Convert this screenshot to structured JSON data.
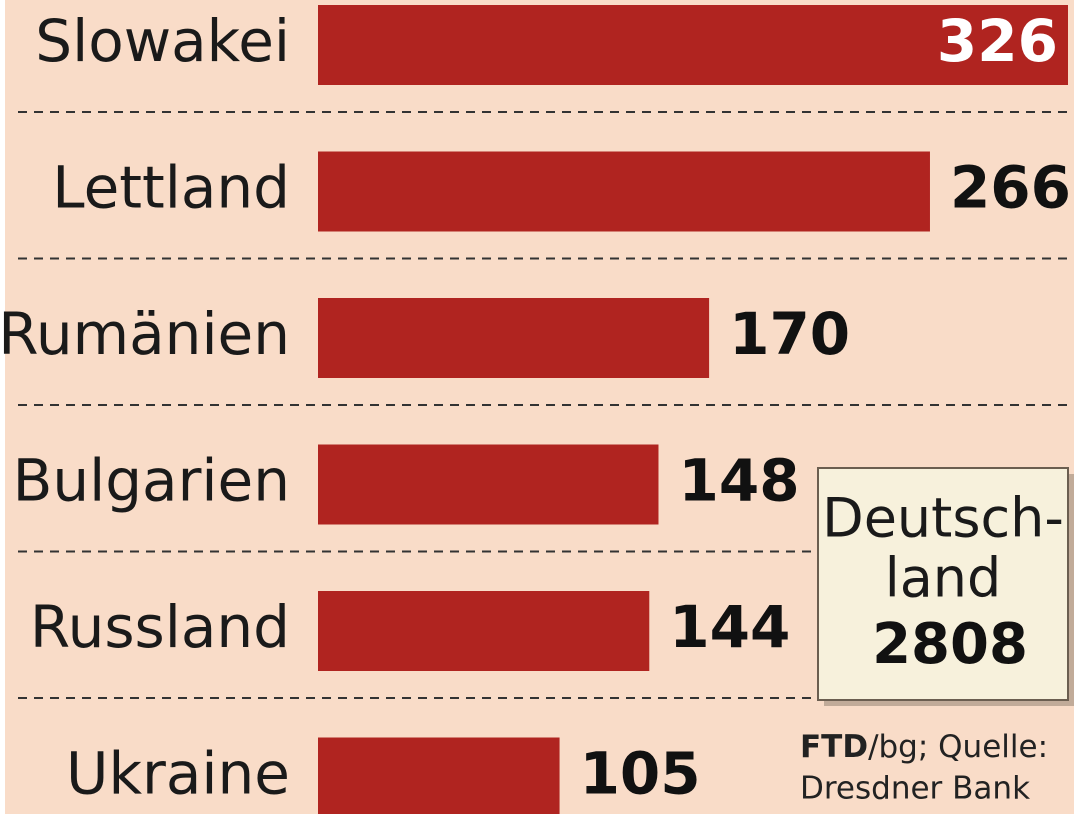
{
  "chart_data": {
    "type": "hbar",
    "categories": [
      "Slowakei",
      "Lettland",
      "Rumänien",
      "Bulgarien",
      "Russland",
      "Ukraine"
    ],
    "values": [
      326,
      266,
      170,
      148,
      144,
      105
    ],
    "color": "#b02420",
    "inset": {
      "label": [
        "Deutsch-",
        "land"
      ],
      "value": 2808,
      "color": "#8c1a1a"
    },
    "source": [
      "FTD",
      "/bg; Quelle:",
      "Dresdner Bank"
    ]
  }
}
